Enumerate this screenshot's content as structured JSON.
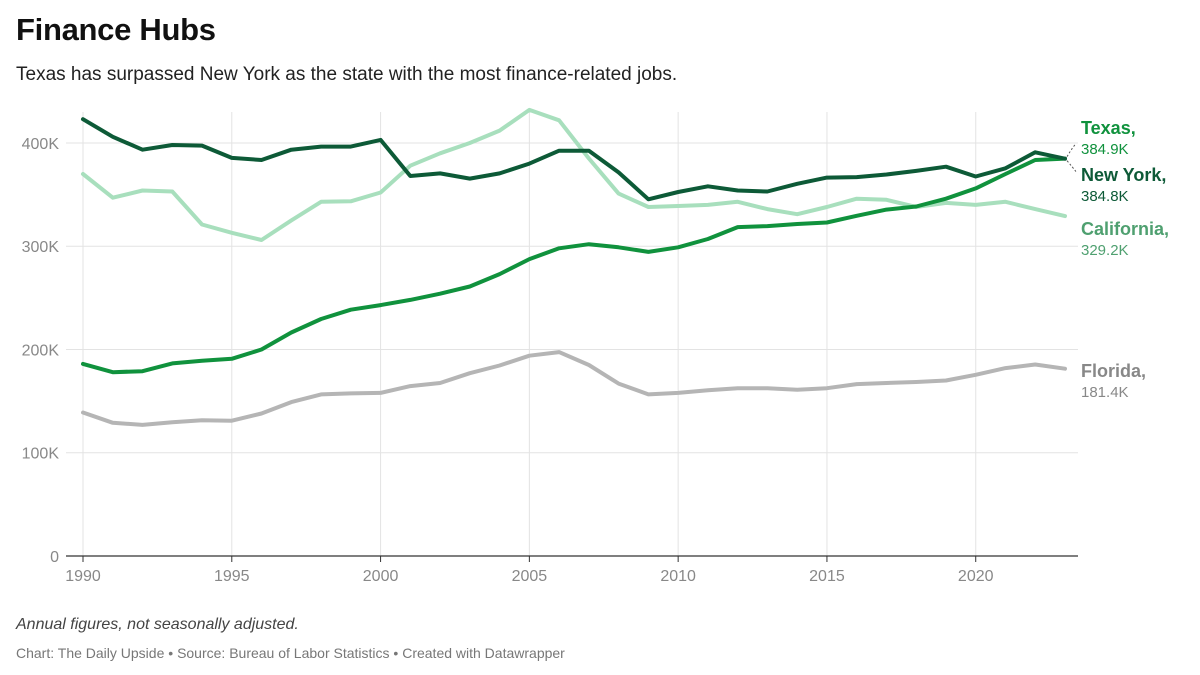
{
  "title": "Finance Hubs",
  "subtitle": "Texas has surpassed New York as the state with the most finance-related jobs.",
  "footer": {
    "note": "Annual figures, not seasonally adjusted.",
    "credit_chart": "Chart: The Daily Upside",
    "credit_source": "Source: Bureau of Labor Statistics",
    "credit_tool": "Created with Datawrapper",
    "separator": " • "
  },
  "chart_data": {
    "type": "line",
    "x": [
      1990,
      1991,
      1992,
      1993,
      1994,
      1995,
      1996,
      1997,
      1998,
      1999,
      2000,
      2001,
      2002,
      2003,
      2004,
      2005,
      2006,
      2007,
      2008,
      2009,
      2010,
      2011,
      2012,
      2013,
      2014,
      2015,
      2016,
      2017,
      2018,
      2019,
      2020,
      2021,
      2022,
      2023
    ],
    "xticks": [
      1990,
      1995,
      2000,
      2005,
      2010,
      2015,
      2020
    ],
    "xlim": [
      1990,
      2023
    ],
    "ylim": [
      0,
      430000
    ],
    "yticks": [
      0,
      100000,
      200000,
      300000,
      400000
    ],
    "ytick_labels": [
      "0",
      "100K",
      "200K",
      "300K",
      "400K"
    ],
    "grid": true,
    "series": [
      {
        "name": "California",
        "end_label": "California,",
        "end_value": "329.2K",
        "color": "#a8dfbd",
        "label_color": "#4fa070",
        "values": [
          370000,
          347000,
          354000,
          353000,
          321000,
          313000,
          306000,
          325000,
          343000,
          343500,
          352000,
          378000,
          390000,
          400000,
          412000,
          432000,
          422000,
          385000,
          351000,
          338000,
          339000,
          340000,
          343000,
          336000,
          331000,
          338000,
          346000,
          345000,
          338000,
          342000,
          340000,
          343000,
          336000,
          329200
        ]
      },
      {
        "name": "Florida",
        "end_label": "Florida,",
        "end_value": "181.4K",
        "color": "#b5b5b5",
        "label_color": "#888888",
        "values": [
          139000,
          129000,
          127000,
          129500,
          131500,
          131000,
          138000,
          149000,
          156500,
          157500,
          158000,
          164500,
          167500,
          177000,
          184500,
          194000,
          197500,
          185000,
          167000,
          156500,
          158000,
          160500,
          162500,
          162500,
          161000,
          162500,
          166500,
          167500,
          168500,
          170000,
          175500,
          182000,
          185500,
          181400
        ]
      },
      {
        "name": "Texas",
        "end_label": "Texas,",
        "end_value": "384.9K",
        "color": "#10923d",
        "label_color": "#10923d",
        "values": [
          186000,
          178000,
          179000,
          186500,
          189000,
          191000,
          200000,
          216500,
          229500,
          238500,
          243000,
          248000,
          254000,
          261000,
          273000,
          287500,
          298000,
          302000,
          299000,
          294500,
          299000,
          307000,
          318500,
          319500,
          321500,
          323000,
          329500,
          335500,
          338500,
          346000,
          356000,
          370000,
          383500,
          384900
        ]
      },
      {
        "name": "New York",
        "end_label": "New York,",
        "end_value": "384.8K",
        "color": "#0d5a37",
        "label_color": "#0d5a37",
        "values": [
          423000,
          406000,
          393500,
          398000,
          397500,
          385500,
          383500,
          393500,
          396500,
          396500,
          403000,
          368000,
          370500,
          365500,
          370500,
          380000,
          392500,
          392500,
          371500,
          345500,
          352500,
          358000,
          354000,
          353000,
          360500,
          366500,
          367000,
          369500,
          373000,
          377000,
          367500,
          375500,
          391000,
          384800
        ]
      }
    ]
  }
}
